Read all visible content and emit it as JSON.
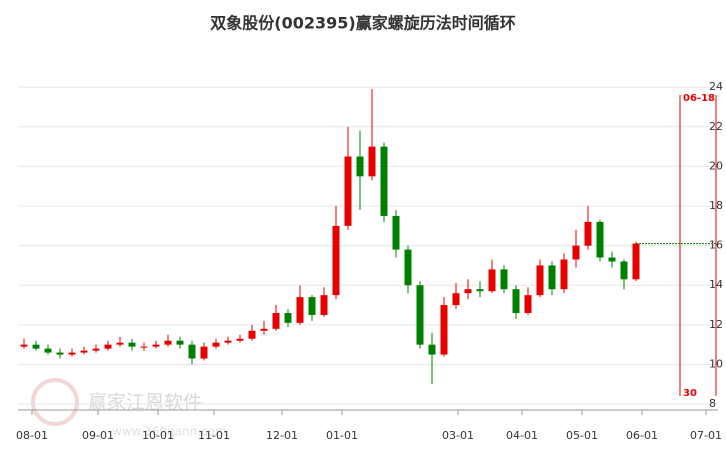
{
  "chart_data": {
    "type": "candlestick",
    "title": "双象股份(002395)赢家螺旋历法时间循环",
    "watermark": {
      "brand": "赢家江恩软件",
      "url": "www.360gann.com"
    },
    "xlim": [
      0,
      350
    ],
    "xticks": [
      {
        "value": 7,
        "label": "08-01"
      },
      {
        "value": 40,
        "label": "09-01"
      },
      {
        "value": 70,
        "label": "10-01"
      },
      {
        "value": 98,
        "label": "11-01"
      },
      {
        "value": 132,
        "label": "12-01"
      },
      {
        "value": 162,
        "label": "01-01"
      },
      {
        "value": 220,
        "label": "03-01"
      },
      {
        "value": 252,
        "label": "04-01"
      },
      {
        "value": 282,
        "label": "05-01"
      },
      {
        "value": 312,
        "label": "06-01"
      },
      {
        "value": 344,
        "label": "07-01"
      }
    ],
    "ylim": [
      7.7,
      25.5
    ],
    "yticks": [
      8,
      10,
      12,
      14,
      16,
      18,
      20,
      22,
      24
    ],
    "grid": true,
    "up_color": "#e60000",
    "down_color": "#008000",
    "x": [
      3,
      9,
      15,
      21,
      27,
      33,
      39,
      45,
      51,
      57,
      63,
      69,
      75,
      81,
      87,
      93,
      99,
      105,
      111,
      117,
      123,
      129,
      135,
      141,
      147,
      153,
      159,
      165,
      171,
      177,
      183,
      189,
      195,
      201,
      207,
      213,
      219,
      225,
      231,
      237,
      243,
      249,
      255,
      261,
      267,
      273,
      279,
      285,
      291,
      297,
      303,
      309
    ],
    "open": [
      10.9,
      11.0,
      10.8,
      10.6,
      10.5,
      10.6,
      10.7,
      10.8,
      11.0,
      11.1,
      10.9,
      10.9,
      11.0,
      11.2,
      11.0,
      10.3,
      10.9,
      11.1,
      11.2,
      11.3,
      11.7,
      11.8,
      12.6,
      12.1,
      13.4,
      12.5,
      13.5,
      17.0,
      20.5,
      19.5,
      21.0,
      17.5,
      15.8,
      14.0,
      11.0,
      10.5,
      13.0,
      13.6,
      13.8,
      13.7,
      14.8,
      13.8,
      12.6,
      13.5,
      15.0,
      13.8,
      15.3,
      16.0,
      17.2,
      15.4,
      15.2,
      14.3
    ],
    "high": [
      11.3,
      11.2,
      11.0,
      10.8,
      10.8,
      10.9,
      11.0,
      11.2,
      11.4,
      11.3,
      11.1,
      11.2,
      11.5,
      11.4,
      11.2,
      11.1,
      11.3,
      11.4,
      11.5,
      12.0,
      12.2,
      13.0,
      12.8,
      14.0,
      13.5,
      13.9,
      18.0,
      22.0,
      21.8,
      23.9,
      21.2,
      17.8,
      16.0,
      14.2,
      11.6,
      13.4,
      14.1,
      14.3,
      14.2,
      15.3,
      15.0,
      14.0,
      13.9,
      15.3,
      15.2,
      15.6,
      16.8,
      18.0,
      17.3,
      15.7,
      15.3,
      16.2
    ],
    "low": [
      10.8,
      10.7,
      10.5,
      10.3,
      10.4,
      10.5,
      10.6,
      10.7,
      10.9,
      10.7,
      10.7,
      10.8,
      10.9,
      10.8,
      10.0,
      10.2,
      10.8,
      11.0,
      11.1,
      11.2,
      11.5,
      11.7,
      11.9,
      12.0,
      12.2,
      12.4,
      13.3,
      16.8,
      17.8,
      19.3,
      17.2,
      15.4,
      13.6,
      10.8,
      9.0,
      10.4,
      12.8,
      13.3,
      13.4,
      13.6,
      13.6,
      12.3,
      12.5,
      13.4,
      13.5,
      13.6,
      14.9,
      15.8,
      15.2,
      14.9,
      13.8,
      14.2
    ],
    "close": [
      11.0,
      10.8,
      10.6,
      10.5,
      10.6,
      10.7,
      10.8,
      11.0,
      11.1,
      10.9,
      10.9,
      11.0,
      11.2,
      11.0,
      10.3,
      10.9,
      11.1,
      11.2,
      11.3,
      11.7,
      11.8,
      12.6,
      12.1,
      13.4,
      12.5,
      13.5,
      17.0,
      20.5,
      19.5,
      21.0,
      17.5,
      15.8,
      14.0,
      11.0,
      10.5,
      13.0,
      13.6,
      13.8,
      13.7,
      14.8,
      13.8,
      12.6,
      13.5,
      15.0,
      13.8,
      15.3,
      16.0,
      17.2,
      15.4,
      15.2,
      14.3,
      16.1
    ],
    "price_line": {
      "value": 16.1,
      "x": [
        309,
        350
      ],
      "color": "#008000"
    },
    "cycle_lines": [
      {
        "x": 331,
        "top_label": "06-18",
        "bottom_label": "30",
        "color": "#e60000"
      },
      {
        "x": 349,
        "color": "#e60000"
      }
    ]
  }
}
